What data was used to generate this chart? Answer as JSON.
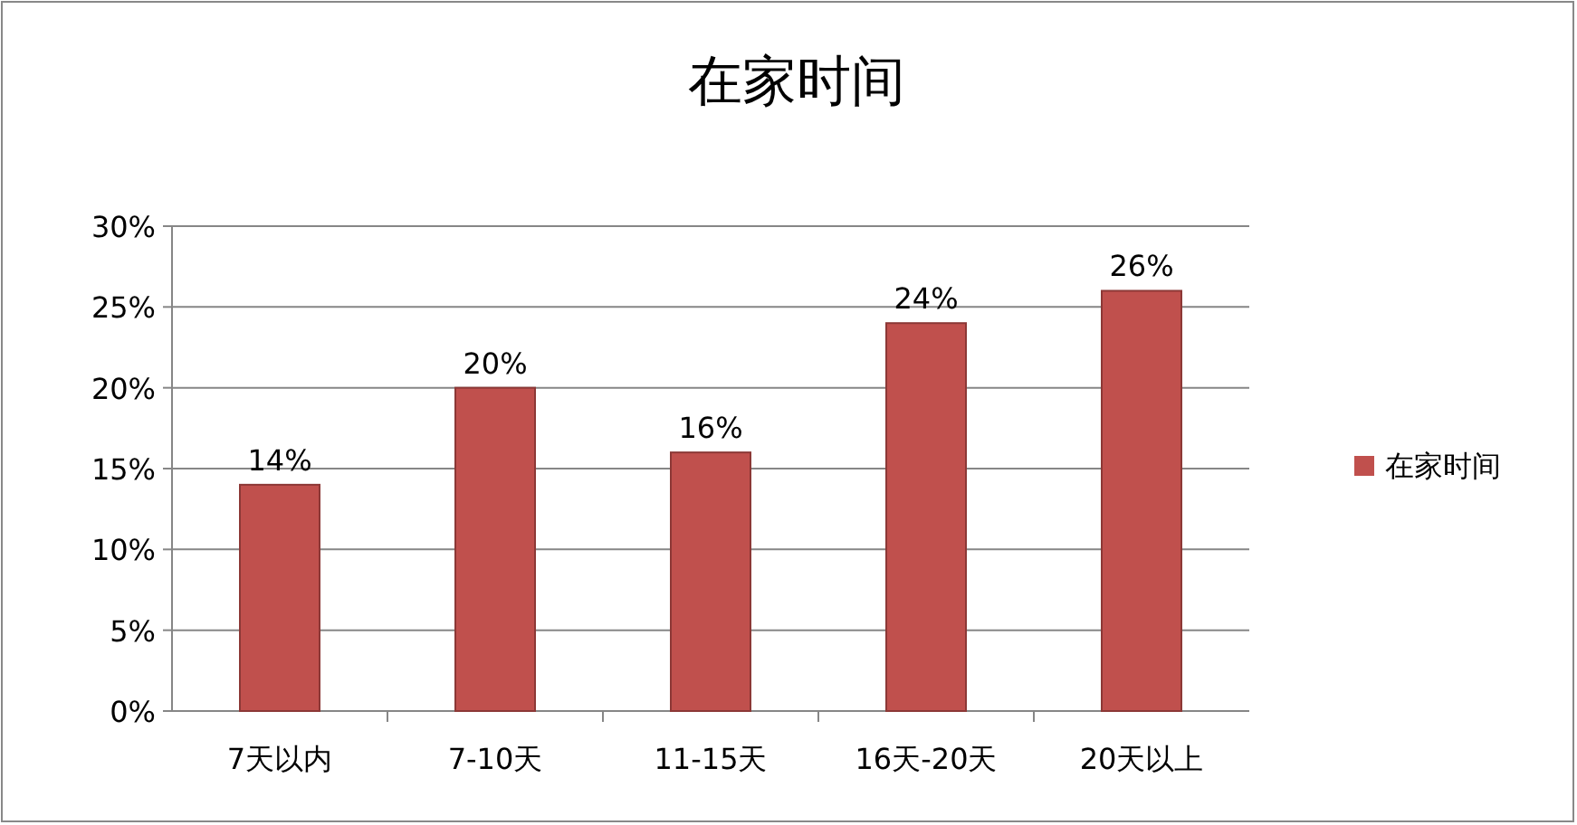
{
  "chart_data": {
    "type": "bar",
    "title": "在家时间",
    "categories": [
      "7天以内",
      "7-10天",
      "11-15天",
      "16天-20天",
      "20天以上"
    ],
    "series": [
      {
        "name": "在家时间",
        "color": "#c0504d",
        "values": [
          14,
          20,
          16,
          24,
          26
        ],
        "value_labels": [
          "14%",
          "20%",
          "16%",
          "24%",
          "26%"
        ]
      }
    ],
    "ylim": [
      0,
      30
    ],
    "yticks": [
      {
        "value": 0,
        "label": "0%"
      },
      {
        "value": 5,
        "label": "5%"
      },
      {
        "value": 10,
        "label": "10%"
      },
      {
        "value": 15,
        "label": "15%"
      },
      {
        "value": 20,
        "label": "20%"
      },
      {
        "value": 25,
        "label": "25%"
      },
      {
        "value": 30,
        "label": "30%"
      }
    ],
    "grid": "y",
    "legend": "right"
  }
}
